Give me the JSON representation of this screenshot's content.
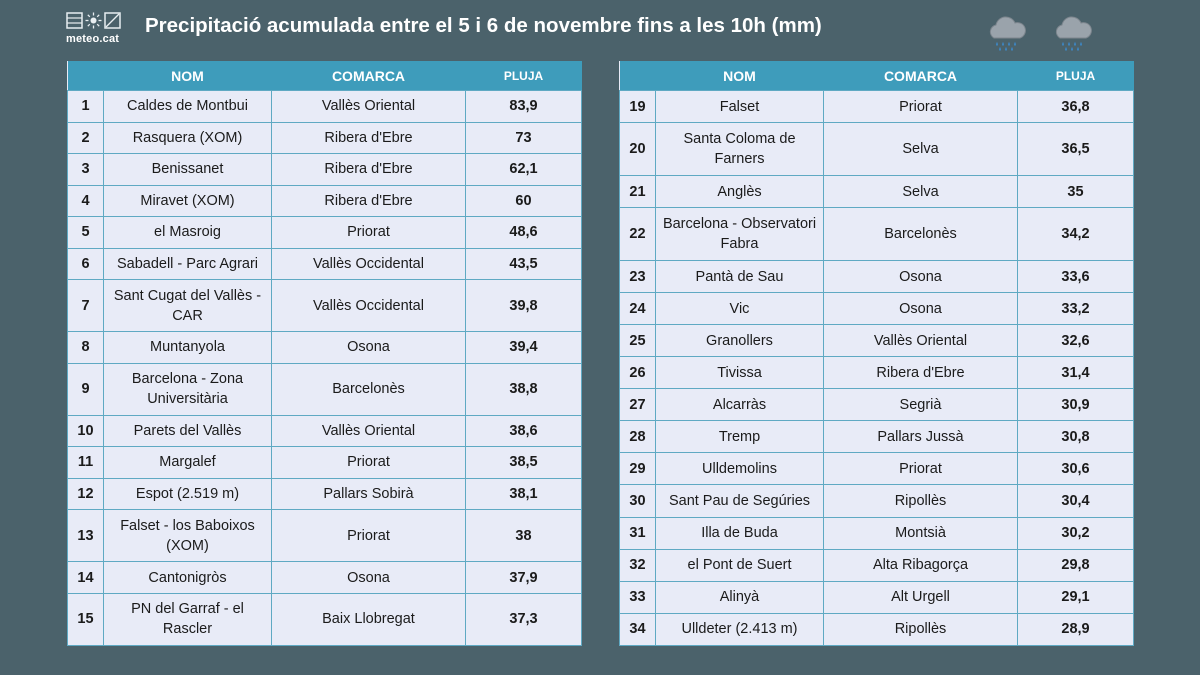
{
  "logo": {
    "text": "meteo.cat"
  },
  "title": "Precipitació acumulada entre el 5 i 6 de novembre fins a les 10h (mm)",
  "headers": {
    "nom": "NOM",
    "comarca": "COMARCA",
    "pluja": "PLUJA"
  },
  "colors": {
    "background": "#4b626b",
    "header": "#3e9cbb",
    "row": "#e8ebf7",
    "border": "#5fa9c3"
  },
  "icons": [
    "rain-cloud-icon",
    "rain-cloud-icon"
  ],
  "left_rows": [
    {
      "n": "1",
      "nom": "Caldes de Montbui",
      "comarca": "Vallès Oriental",
      "pluja": "83,9"
    },
    {
      "n": "2",
      "nom": "Rasquera (XOM)",
      "comarca": "Ribera d'Ebre",
      "pluja": "73"
    },
    {
      "n": "3",
      "nom": "Benissanet",
      "comarca": "Ribera d'Ebre",
      "pluja": "62,1"
    },
    {
      "n": "4",
      "nom": "Miravet (XOM)",
      "comarca": "Ribera d'Ebre",
      "pluja": "60"
    },
    {
      "n": "5",
      "nom": "el Masroig",
      "comarca": "Priorat",
      "pluja": "48,6"
    },
    {
      "n": "6",
      "nom": "Sabadell - Parc Agrari",
      "comarca": "Vallès Occidental",
      "pluja": "43,5"
    },
    {
      "n": "7",
      "nom": "Sant Cugat del Vallès - CAR",
      "comarca": "Vallès Occidental",
      "pluja": "39,8",
      "tall": true
    },
    {
      "n": "8",
      "nom": "Muntanyola",
      "comarca": "Osona",
      "pluja": "39,4"
    },
    {
      "n": "9",
      "nom": "Barcelona - Zona Universitària",
      "comarca": "Barcelonès",
      "pluja": "38,8",
      "tall": true
    },
    {
      "n": "10",
      "nom": "Parets del Vallès",
      "comarca": "Vallès Oriental",
      "pluja": "38,6"
    },
    {
      "n": "11",
      "nom": "Margalef",
      "comarca": "Priorat",
      "pluja": "38,5"
    },
    {
      "n": "12",
      "nom": "Espot (2.519 m)",
      "comarca": "Pallars Sobirà",
      "pluja": "38,1"
    },
    {
      "n": "13",
      "nom": "Falset - los Baboixos (XOM)",
      "comarca": "Priorat",
      "pluja": "38",
      "tall": true
    },
    {
      "n": "14",
      "nom": "Cantonigròs",
      "comarca": "Osona",
      "pluja": "37,9"
    },
    {
      "n": "15",
      "nom": "PN del Garraf - el Rascler",
      "comarca": "Baix Llobregat",
      "pluja": "37,3",
      "tall": true
    }
  ],
  "right_rows": [
    {
      "n": "19",
      "nom": "Falset",
      "comarca": "Priorat",
      "pluja": "36,8"
    },
    {
      "n": "20",
      "nom": "Santa Coloma de Farners",
      "comarca": "Selva",
      "pluja": "36,5",
      "tall": true
    },
    {
      "n": "21",
      "nom": "Anglès",
      "comarca": "Selva",
      "pluja": "35"
    },
    {
      "n": "22",
      "nom": "Barcelona - Observatori Fabra",
      "comarca": "Barcelonès",
      "pluja": "34,2",
      "tall": true
    },
    {
      "n": "23",
      "nom": "Pantà de Sau",
      "comarca": "Osona",
      "pluja": "33,6"
    },
    {
      "n": "24",
      "nom": "Vic",
      "comarca": "Osona",
      "pluja": "33,2"
    },
    {
      "n": "25",
      "nom": "Granollers",
      "comarca": "Vallès Oriental",
      "pluja": "32,6"
    },
    {
      "n": "26",
      "nom": "Tivissa",
      "comarca": "Ribera d'Ebre",
      "pluja": "31,4"
    },
    {
      "n": "27",
      "nom": "Alcarràs",
      "comarca": "Segrià",
      "pluja": "30,9"
    },
    {
      "n": "28",
      "nom": "Tremp",
      "comarca": "Pallars Jussà",
      "pluja": "30,8"
    },
    {
      "n": "29",
      "nom": "Ulldemolins",
      "comarca": "Priorat",
      "pluja": "30,6"
    },
    {
      "n": "30",
      "nom": "Sant Pau de Segúries",
      "comarca": "Ripollès",
      "pluja": "30,4"
    },
    {
      "n": "31",
      "nom": "Illa de Buda",
      "comarca": "Montsià",
      "pluja": "30,2"
    },
    {
      "n": "32",
      "nom": "el Pont de Suert",
      "comarca": "Alta Ribagorça",
      "pluja": "29,8"
    },
    {
      "n": "33",
      "nom": "Alinyà",
      "comarca": "Alt Urgell",
      "pluja": "29,1"
    },
    {
      "n": "34",
      "nom": "Ulldeter (2.413 m)",
      "comarca": "Ripollès",
      "pluja": "28,9"
    }
  ]
}
